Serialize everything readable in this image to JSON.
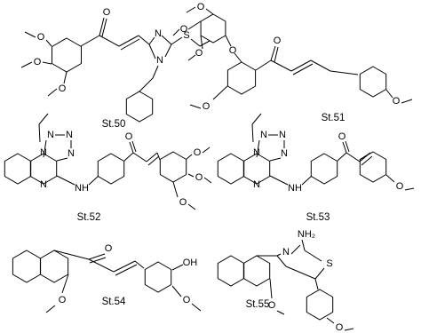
{
  "compounds": [
    {
      "label": "St.50",
      "atoms": [
        "O",
        "O",
        "O",
        "O",
        "N",
        "N",
        "S"
      ]
    },
    {
      "label": "St.51",
      "atoms": [
        "O",
        "O",
        "O",
        "O",
        "O",
        "O",
        "O"
      ]
    },
    {
      "label": "St.52",
      "atoms": [
        "N",
        "N",
        "N",
        "N",
        "N",
        "NH",
        "O",
        "O",
        "O",
        "O"
      ]
    },
    {
      "label": "St.53",
      "atoms": [
        "N",
        "N",
        "N",
        "N",
        "N",
        "NH",
        "O",
        "O"
      ]
    },
    {
      "label": "St.54",
      "atoms": [
        "O",
        "O",
        "OH",
        "O"
      ]
    },
    {
      "label": "St.55",
      "atoms": [
        "NH₂",
        "N",
        "S",
        "O",
        "O"
      ]
    }
  ]
}
